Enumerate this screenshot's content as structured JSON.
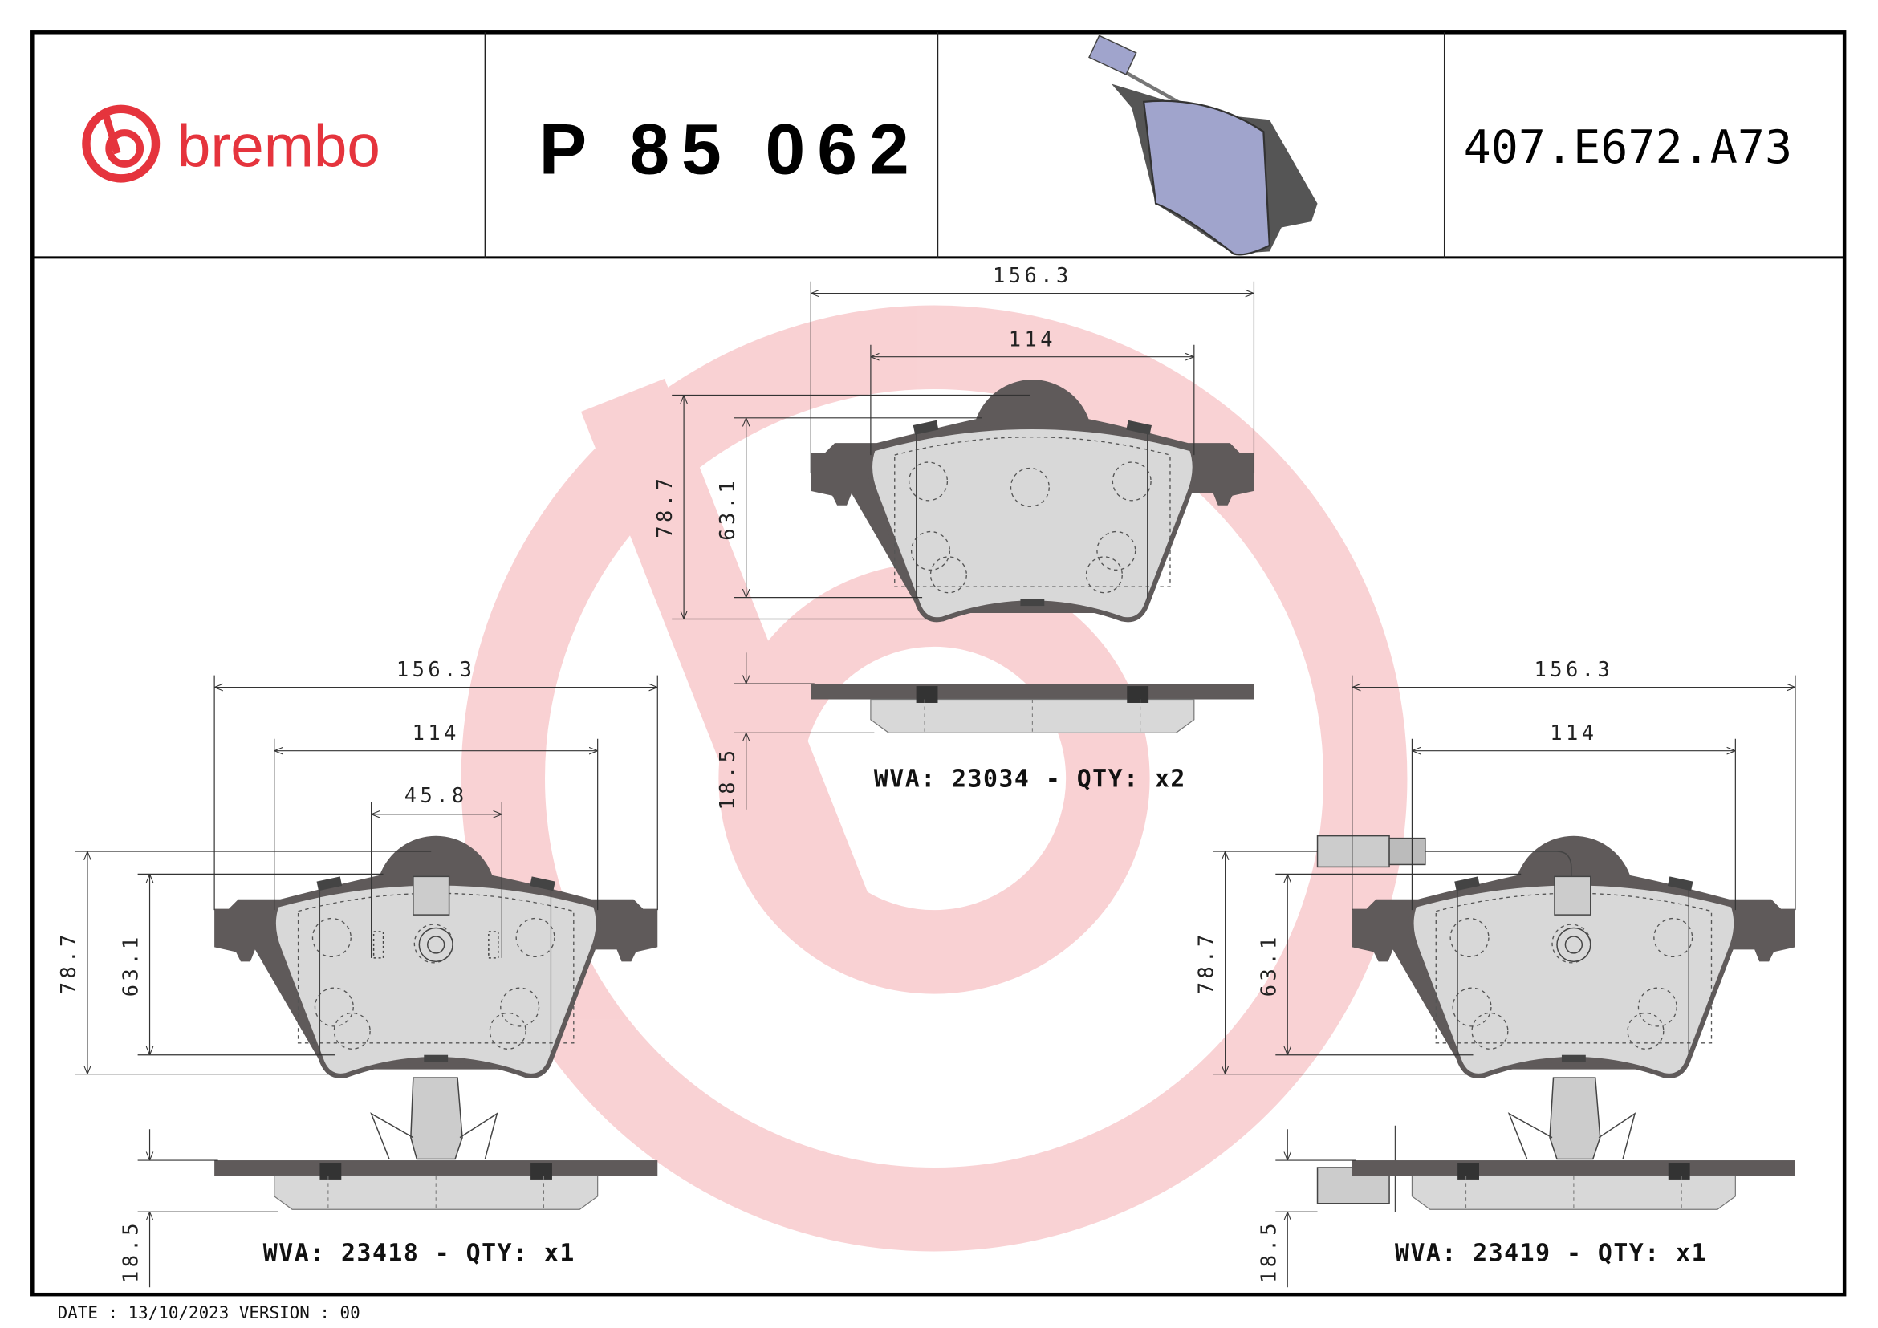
{
  "header": {
    "brand": "brembo",
    "part_number": "P 85 062",
    "oe_code": "407.E672.A73"
  },
  "colors": {
    "brand_red": "#e5343d",
    "backplate": "#5f5a5a",
    "friction": "#d8d8d8",
    "thumbnail": "#a0a4cc"
  },
  "views": {
    "top": {
      "width_total": "156.3",
      "width_inner": "114",
      "height_total": "78.7",
      "height_friction": "63.1",
      "thickness": "18.5",
      "label": "WVA: 23034 - QTY: x2"
    },
    "left": {
      "width_total": "156.3",
      "width_inner": "114",
      "width_sensor": "45.8",
      "height_total": "78.7",
      "height_friction": "63.1",
      "thickness": "18.5",
      "label": "WVA: 23418 - QTY: x1"
    },
    "right": {
      "width_total": "156.3",
      "width_inner": "114",
      "height_total": "78.7",
      "height_friction": "63.1",
      "thickness": "18.5",
      "label": "WVA: 23419 - QTY: x1"
    }
  },
  "footer": {
    "date_version": "DATE : 13/10/2023 VERSION : 00"
  }
}
